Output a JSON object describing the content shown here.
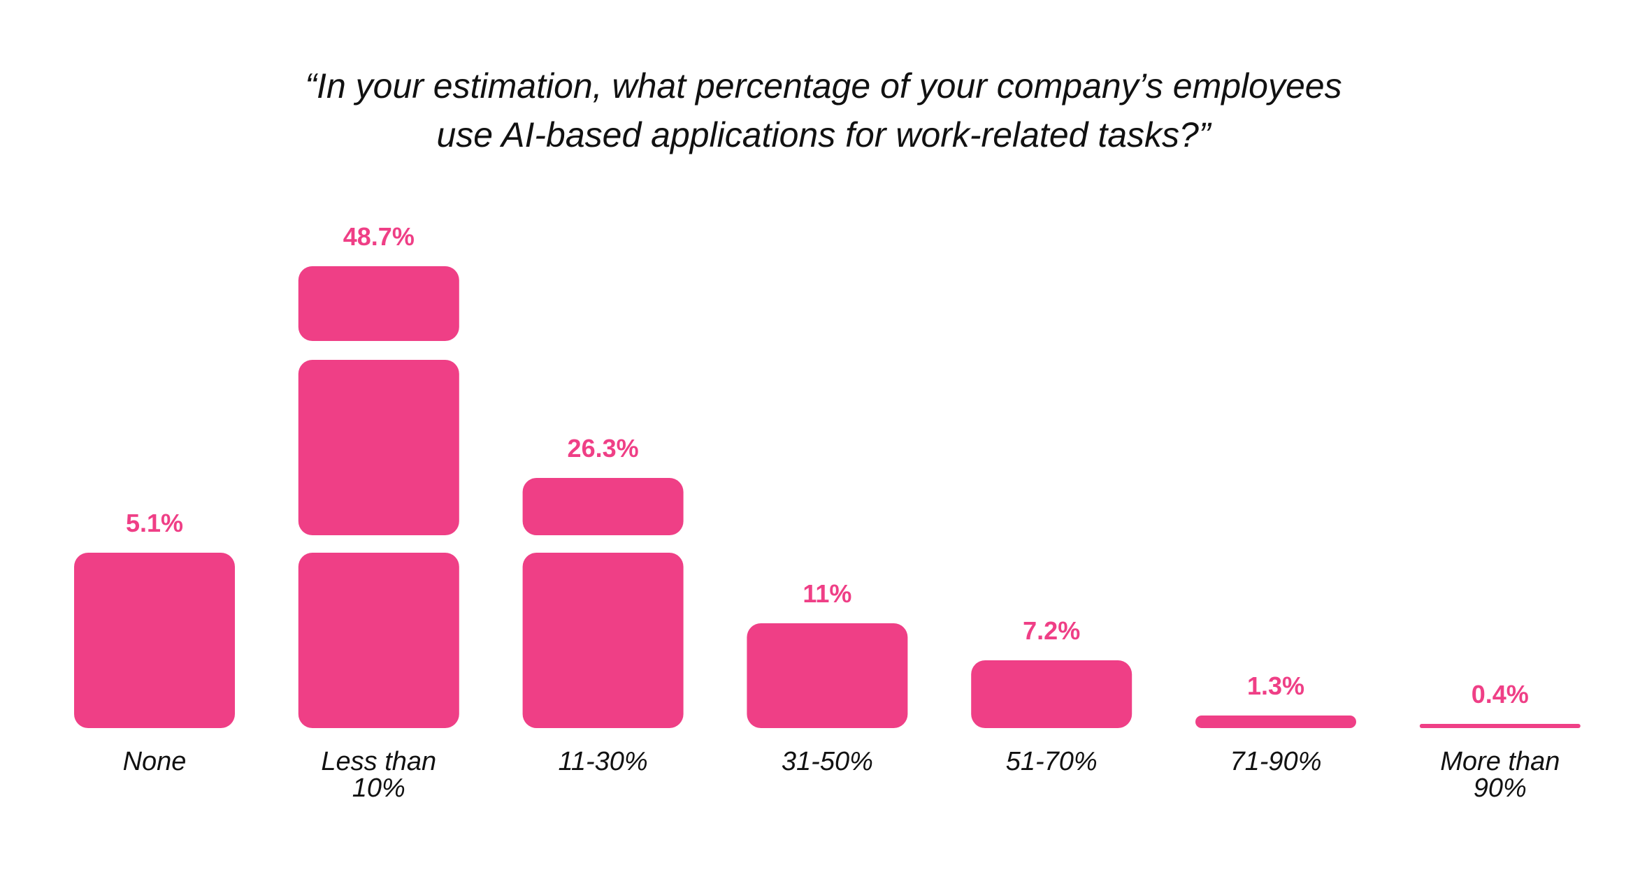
{
  "chart_data": {
    "type": "bar",
    "title_lines": [
      "“In your estimation, what percentage of your company’s employees",
      "use AI-based applications for work-related tasks?”"
    ],
    "categories": [
      [
        "None"
      ],
      [
        "Less than",
        "10%"
      ],
      [
        "11-30%"
      ],
      [
        "31-50%"
      ],
      [
        "51-70%"
      ],
      [
        "71-90%"
      ],
      [
        "More than",
        "90%"
      ]
    ],
    "values": [
      5.1,
      48.7,
      26.3,
      11,
      7.2,
      1.3,
      0.4
    ],
    "value_labels": [
      "5.1%",
      "48.7%",
      "26.3%",
      "11%",
      "7.2%",
      "1.3%",
      "0.4%"
    ],
    "unit": "%",
    "xlabel": "",
    "ylabel": "",
    "grid": false,
    "bar_color": "#EF3F86",
    "label_color": "#EF3F86"
  }
}
